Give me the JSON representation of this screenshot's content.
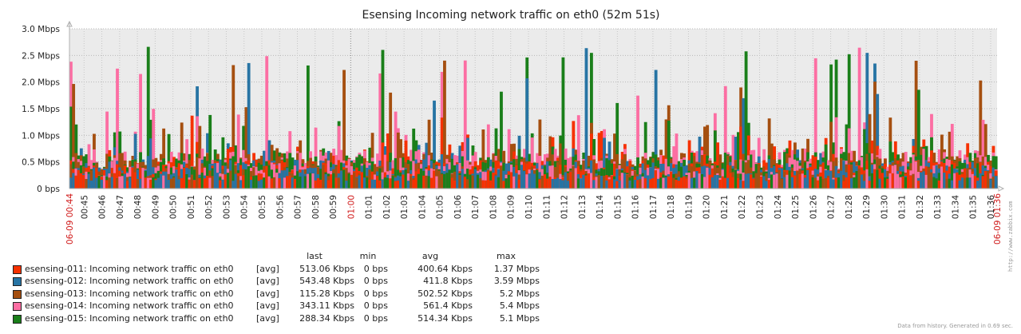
{
  "chart_data": {
    "type": "bar",
    "title": "Esensing Incoming network traffic on eth0 (52m 51s)",
    "ylim": [
      0,
      3
    ],
    "y_unit": "Mbps",
    "y_ticks": [
      "0 bps",
      "0.5 Mbps",
      "1.0 Mbps",
      "1.5 Mbps",
      "2.0 Mbps",
      "2.5 Mbps",
      "3.0 Mbps"
    ],
    "x_start_label": "06-09 00:44",
    "x_end_label": "06-09 01:36",
    "x_tick_labels": [
      "00:45",
      "00:46",
      "00:47",
      "00:48",
      "00:49",
      "00:50",
      "00:51",
      "00:52",
      "00:53",
      "00:54",
      "00:55",
      "00:56",
      "00:57",
      "00:58",
      "00:59",
      "01:00",
      "01:01",
      "01:02",
      "01:03",
      "01:04",
      "01:05",
      "01:06",
      "01:07",
      "01:08",
      "01:09",
      "01:10",
      "01:11",
      "01:12",
      "01:13",
      "01:14",
      "01:15",
      "01:16",
      "01:17",
      "01:18",
      "01:19",
      "01:20",
      "01:21",
      "01:22",
      "01:23",
      "01:24",
      "01:25",
      "01:26",
      "01:27",
      "01:28",
      "01:29",
      "01:30",
      "01:31",
      "01:32",
      "01:33",
      "01:34",
      "01:35",
      "01:36"
    ],
    "highlight_tick": "01:00",
    "grid": true,
    "series": [
      {
        "name": "esensing-011: Incoming network traffic on eth0",
        "color": "#f63100",
        "avg_mbps": 0.4,
        "max_mbps": 1.37
      },
      {
        "name": "esensing-012: Incoming network traffic on eth0",
        "color": "#2774a4",
        "avg_mbps": 0.41,
        "max_mbps": 3.59
      },
      {
        "name": "esensing-013: Incoming network traffic on eth0",
        "color": "#a54f10",
        "avg_mbps": 0.5,
        "max_mbps": 5.2
      },
      {
        "name": "esensing-014: Incoming network traffic on eth0",
        "color": "#fc6ea3",
        "avg_mbps": 0.56,
        "max_mbps": 5.4
      },
      {
        "name": "esensing-015: Incoming network traffic on eth0",
        "color": "#1a7f1a",
        "avg_mbps": 0.51,
        "max_mbps": 5.1
      }
    ]
  },
  "legend": {
    "headers": {
      "last": "last",
      "min": "min",
      "avg": "avg",
      "max": "max"
    },
    "rows": [
      {
        "name": "esensing-011: Incoming network traffic on eth0",
        "func": "[avg]",
        "last": "513.06 Kbps",
        "min": "0 bps",
        "avg": "400.64 Kbps",
        "max": "1.37 Mbps",
        "color": "#f63100"
      },
      {
        "name": "esensing-012: Incoming network traffic on eth0",
        "func": "[avg]",
        "last": "543.48 Kbps",
        "min": "0 bps",
        "avg": "411.8 Kbps",
        "max": "3.59 Mbps",
        "color": "#2774a4"
      },
      {
        "name": "esensing-013: Incoming network traffic on eth0",
        "func": "[avg]",
        "last": "115.28 Kbps",
        "min": "0 bps",
        "avg": "502.52 Kbps",
        "max": "5.2 Mbps",
        "color": "#a54f10"
      },
      {
        "name": "esensing-014: Incoming network traffic on eth0",
        "func": "[avg]",
        "last": "343.11 Kbps",
        "min": "0 bps",
        "avg": "561.4 Kbps",
        "max": "5.4 Mbps",
        "color": "#fc6ea3"
      },
      {
        "name": "esensing-015: Incoming network traffic on eth0",
        "func": "[avg]",
        "last": "288.34 Kbps",
        "min": "0 bps",
        "avg": "514.34 Kbps",
        "max": "5.1 Mbps",
        "color": "#1a7f1a"
      }
    ]
  },
  "footer": "Data from history. Generated in 0.69 sec.",
  "side_url": "http://www.zabbix.com"
}
